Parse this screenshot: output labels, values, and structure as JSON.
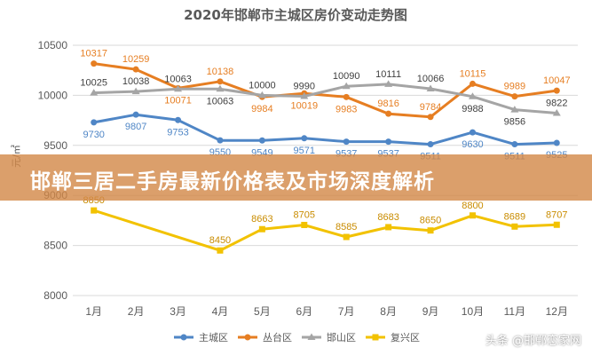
{
  "banner": {
    "text": "邯郸三居二手房最新价格表及市场深度解析"
  },
  "watermark": {
    "text": "头条 @邯郸恋家网"
  },
  "chart_data": {
    "type": "line",
    "title": "2020年邯郸市主城区房价变动走势图",
    "ylabel": "元/㎡",
    "xlabel": "",
    "ylim": [
      8000,
      10500
    ],
    "yticks": [
      8000,
      8500,
      9000,
      9500,
      10000,
      10500
    ],
    "grid": true,
    "legend_position": "bottom",
    "categories": [
      "1月",
      "2月",
      "3月",
      "4月",
      "5月",
      "6月",
      "7月",
      "8月",
      "9月",
      "10月",
      "11月",
      "12月"
    ],
    "series": [
      {
        "name": "主城区",
        "color": "#4f86c6",
        "label_color": "#4f86c6",
        "values": [
          9730,
          9807,
          9753,
          9550,
          9549,
          9571,
          9537,
          9537,
          9511,
          9630,
          9511,
          9525
        ],
        "labels": [
          "9730",
          "9807",
          "9753",
          "9550",
          "9549",
          "9571",
          "9537",
          "9537",
          "9511",
          "9630",
          "9511",
          "9525"
        ],
        "label_pos": [
          "below",
          "below",
          "below",
          "below",
          "below",
          "below",
          "below",
          "below",
          "below",
          "below",
          "below",
          "below"
        ]
      },
      {
        "name": "丛台区",
        "color": "#e67e22",
        "label_color": "#e67e22",
        "values": [
          10317,
          10259,
          10071,
          10138,
          9984,
          10019,
          9983,
          9816,
          9784,
          10115,
          9989,
          10047
        ],
        "labels": [
          "10317",
          "10259",
          "10071",
          "10138",
          "9984",
          "10019",
          "9983",
          "9816",
          "9784",
          "10115",
          "9989",
          "10047"
        ],
        "label_pos": [
          "above",
          "above",
          "below",
          "above",
          "below",
          "below",
          "below",
          "above",
          "above",
          "above",
          "above",
          "above"
        ]
      },
      {
        "name": "邯山区",
        "color": "#a5a5a5",
        "label_color": "#404040",
        "values": [
          10025,
          10038,
          10063,
          10063,
          10000,
          9990,
          10090,
          10111,
          10066,
          9988,
          9856,
          9822
        ],
        "labels": [
          "10025",
          "10038",
          "10063",
          "10063",
          "10000",
          "9990",
          "10090",
          "10111",
          "10066",
          "9988",
          "9856",
          "9822"
        ],
        "label_pos": [
          "above",
          "above",
          "above",
          "below",
          "above",
          "above",
          "above",
          "above",
          "above",
          "below",
          "below",
          "above"
        ]
      },
      {
        "name": "复兴区",
        "color": "#f2c200",
        "label_color": "#c98c00",
        "values": [
          8850,
          null,
          null,
          8450,
          8663,
          8705,
          8585,
          8683,
          8650,
          8800,
          8689,
          8707
        ],
        "labels": [
          "8850",
          "",
          "",
          "8450",
          "8663",
          "8705",
          "8585",
          "8683",
          "8650",
          "8800",
          "8689",
          "8707"
        ],
        "label_pos": [
          "above",
          "above",
          "above",
          "above",
          "above",
          "above",
          "above",
          "above",
          "above",
          "above",
          "above",
          "above"
        ]
      }
    ]
  }
}
